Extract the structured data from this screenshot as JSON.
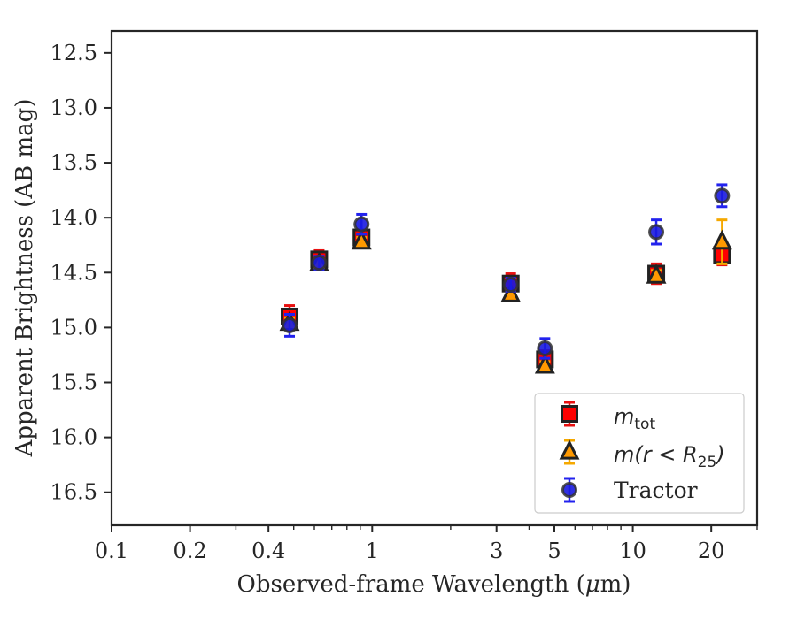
{
  "chart_data": {
    "type": "scatter",
    "xlabel": "Observed-frame Wavelength (",
    "xlabel_mu": "μ",
    "xlabel_unit": "m)",
    "ylabel": "Apparent Brightness (AB mag)",
    "x_scale": "log",
    "xlim": [
      0.1,
      30
    ],
    "ylim": [
      16.8,
      12.3
    ],
    "y_inverted": true,
    "grid": false,
    "legend_position": "bottom-right",
    "x_ticks": [
      {
        "value": 0.1,
        "label": "0.1"
      },
      {
        "value": 0.2,
        "label": "0.2"
      },
      {
        "value": 0.4,
        "label": "0.4"
      },
      {
        "value": 1,
        "label": "1"
      },
      {
        "value": 3,
        "label": "3"
      },
      {
        "value": 5,
        "label": "5"
      },
      {
        "value": 10,
        "label": "10"
      },
      {
        "value": 20,
        "label": "20"
      }
    ],
    "y_ticks": [
      {
        "value": 12.5,
        "label": "12.5"
      },
      {
        "value": 13.0,
        "label": "13.0"
      },
      {
        "value": 13.5,
        "label": "13.5"
      },
      {
        "value": 14.0,
        "label": "14.0"
      },
      {
        "value": 14.5,
        "label": "14.5"
      },
      {
        "value": 15.0,
        "label": "15.0"
      },
      {
        "value": 15.5,
        "label": "15.5"
      },
      {
        "value": 16.0,
        "label": "16.0"
      },
      {
        "value": 16.5,
        "label": "16.5"
      }
    ],
    "series": [
      {
        "name": "m_tot",
        "legend_main": "m",
        "legend_sub": "tot",
        "marker": "square",
        "face_color": "#ff0000",
        "edge_color": "#222222",
        "error_color": "#e81010",
        "points": [
          {
            "x": 0.482,
            "y": 14.9,
            "err": 0.1
          },
          {
            "x": 0.626,
            "y": 14.38,
            "err": 0.08
          },
          {
            "x": 0.91,
            "y": 14.18,
            "err": 0.06
          },
          {
            "x": 3.4,
            "y": 14.6,
            "err": 0.09
          },
          {
            "x": 4.6,
            "y": 15.29,
            "err": 0.08
          },
          {
            "x": 12.3,
            "y": 14.51,
            "err": 0.09
          },
          {
            "x": 22.0,
            "y": 14.34,
            "err": 0.09
          }
        ]
      },
      {
        "name": "m(r < R_25)",
        "legend_main": "m(r < R",
        "legend_sub": "25",
        "legend_tail": ")",
        "marker": "triangle",
        "face_color": "#ff9900",
        "edge_color": "#222222",
        "error_color": "#f5a800",
        "points": [
          {
            "x": 0.482,
            "y": 14.96,
            "err": 0.05
          },
          {
            "x": 0.626,
            "y": 14.42,
            "err": 0.04
          },
          {
            "x": 0.91,
            "y": 14.22,
            "err": 0.04
          },
          {
            "x": 3.4,
            "y": 14.7,
            "err": 0.04
          },
          {
            "x": 4.6,
            "y": 15.35,
            "err": 0.04
          },
          {
            "x": 12.3,
            "y": 14.53,
            "err": 0.05
          },
          {
            "x": 22.0,
            "y": 14.22,
            "err": 0.2
          }
        ]
      },
      {
        "name": "Tractor",
        "legend_main": "Tractor",
        "marker": "circle",
        "face_color": "#1a1adf",
        "edge_color": "#333333",
        "error_color": "#2222ee",
        "points": [
          {
            "x": 0.482,
            "y": 14.98,
            "err": 0.1
          },
          {
            "x": 0.626,
            "y": 14.41,
            "err": 0.06
          },
          {
            "x": 0.91,
            "y": 14.06,
            "err": 0.09
          },
          {
            "x": 3.4,
            "y": 14.61,
            "err": 0.06
          },
          {
            "x": 4.6,
            "y": 15.19,
            "err": 0.09
          },
          {
            "x": 12.3,
            "y": 14.13,
            "err": 0.11
          },
          {
            "x": 22.0,
            "y": 13.8,
            "err": 0.1
          }
        ]
      }
    ]
  }
}
